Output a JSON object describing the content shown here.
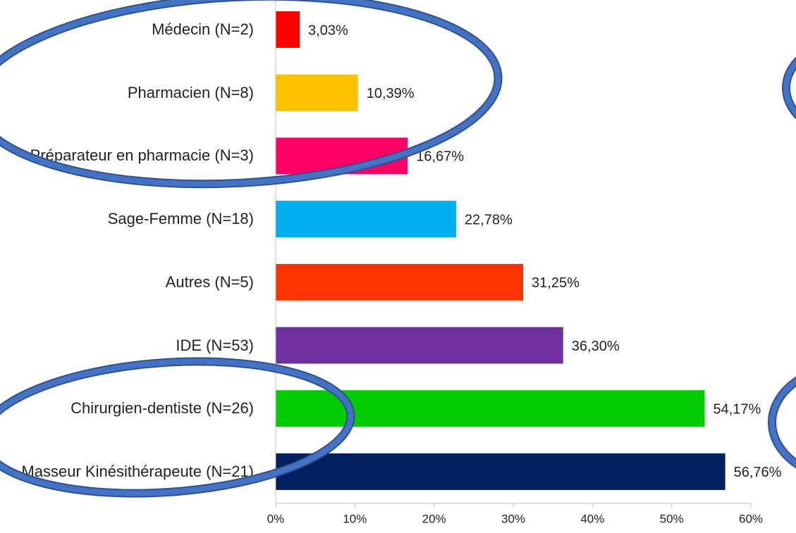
{
  "chart_data": {
    "type": "bar",
    "orientation": "horizontal",
    "categories": [
      "Médecin (N=2)",
      "Pharmacien (N=8)",
      "Préparateur en pharmacie (N=3)",
      "Sage-Femme (N=18)",
      "Autres (N=5)",
      "IDE (N=53)",
      "Chirurgien-dentiste (N=26)",
      "Masseur Kinésithérapeute (N=21)"
    ],
    "values": [
      3.03,
      10.39,
      16.67,
      22.78,
      31.25,
      36.3,
      54.17,
      56.76
    ],
    "value_labels": [
      "3,03%",
      "10,39%",
      "16,67%",
      "22,78%",
      "31,25%",
      "36,30%",
      "54,17%",
      "56,76%"
    ],
    "colors": [
      "#ff0000",
      "#ffc000",
      "#ff0066",
      "#00b0f0",
      "#ff3300",
      "#7030a0",
      "#00cc00",
      "#002060"
    ],
    "xlim": [
      0,
      60
    ],
    "xticks": [
      {
        "value": 0,
        "label": "0%"
      },
      {
        "value": 10,
        "label": "10%"
      },
      {
        "value": 20,
        "label": "20%"
      },
      {
        "value": 30,
        "label": "30%"
      },
      {
        "value": 40,
        "label": "40%"
      },
      {
        "value": 50,
        "label": "50%"
      },
      {
        "value": 60,
        "label": "60%"
      }
    ],
    "grid": false
  }
}
